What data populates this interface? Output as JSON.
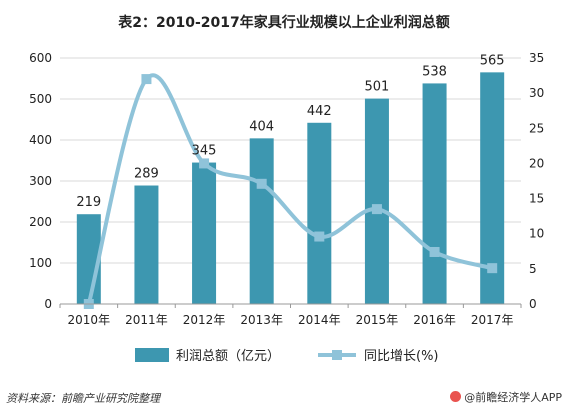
{
  "chart_data": {
    "type": "bar",
    "title": "表2：2010-2017年家具行业规模以上企业利润总额",
    "categories": [
      "2010年",
      "2011年",
      "2012年",
      "2013年",
      "2014年",
      "2015年",
      "2016年",
      "2017年"
    ],
    "series": [
      {
        "name": "利润总额（亿元）",
        "type": "bar",
        "axis": "left",
        "values": [
          219,
          289,
          345,
          404,
          442,
          501,
          538,
          565
        ],
        "color": "#3d97b0"
      },
      {
        "name": "同比增长(%)",
        "type": "line",
        "axis": "right",
        "values": [
          0,
          32,
          20,
          17.1,
          9.6,
          13.5,
          7.4,
          5.1
        ],
        "color": "#8fc3d9"
      }
    ],
    "ylim_left": [
      0,
      600
    ],
    "yticks_left": [
      0,
      100,
      200,
      300,
      400,
      500,
      600
    ],
    "ylim_right": [
      0,
      35
    ],
    "yticks_right": [
      0,
      5,
      10,
      15,
      20,
      25,
      30,
      35
    ],
    "grid": true,
    "legend": "bottom"
  },
  "footer": {
    "source": "资料来源：前瞻产业研究院整理",
    "brand": "@前瞻经济学人APP"
  }
}
